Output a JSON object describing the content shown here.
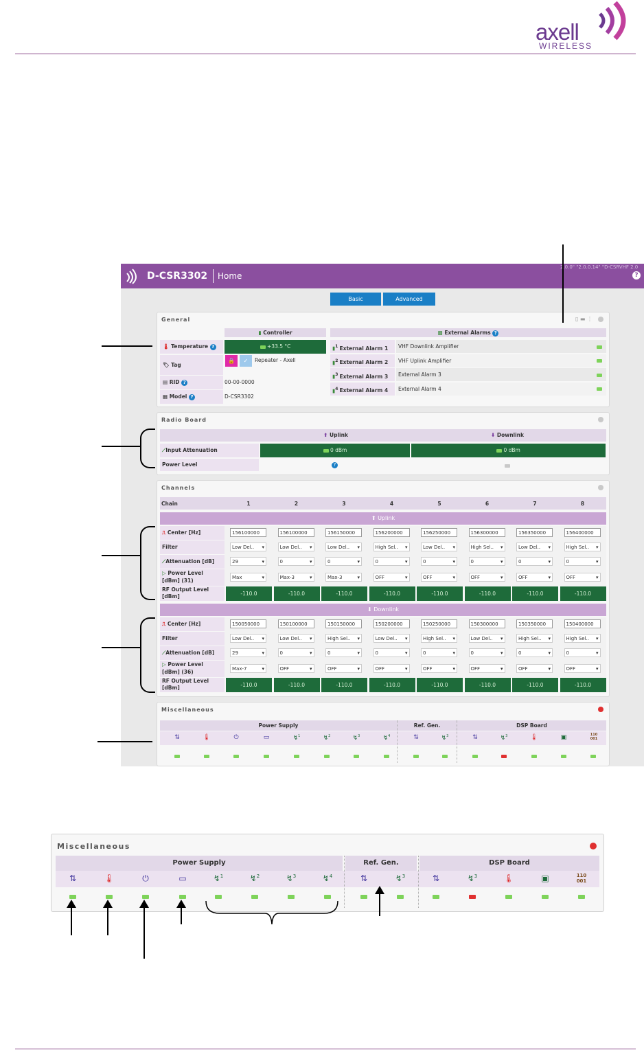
{
  "logo": {
    "brand": "axell",
    "sub": "WIRELESS"
  },
  "topbar": {
    "product": "D-CSR3302",
    "page": "Home",
    "version": "2.0.0\" \"2.0.0.14\" \"D-CSRVHF 2.0",
    "help": "?"
  },
  "tabs": [
    "Basic",
    "Advanced"
  ],
  "general": {
    "title": "General",
    "controller_header": "Controller",
    "alarms_header": "External Alarms",
    "temperature_label": "Temperature",
    "temperature_value": "+33.5 °C",
    "tag_label": "Tag",
    "tag_value": "Repeater - Axell",
    "rid_label": "RID",
    "rid_value": "00-00-0000",
    "model_label": "Model",
    "model_value": "D-CSR3302",
    "alarms": [
      {
        "num": "1",
        "label": "External Alarm 1",
        "desc": "VHF Downlink Amplifier"
      },
      {
        "num": "2",
        "label": "External Alarm 2",
        "desc": "VHF Uplink Amplifier"
      },
      {
        "num": "3",
        "label": "External Alarm 3",
        "desc": "External Alarm 3"
      },
      {
        "num": "4",
        "label": "External Alarm 4",
        "desc": "External Alarm 4"
      }
    ]
  },
  "radio": {
    "title": "Radio Board",
    "uplink": "Uplink",
    "downlink": "Downlink",
    "input_att_label": "Input Attenuation",
    "uplink_att": "0 dBm",
    "downlink_att": "0 dBm",
    "power_level_label": "Power Level"
  },
  "channels": {
    "title": "Channels",
    "chain_label": "Chain",
    "chains": [
      "1",
      "2",
      "3",
      "4",
      "5",
      "6",
      "7",
      "8"
    ],
    "uplink_band": "Uplink",
    "downlink_band": "Downlink",
    "labels": {
      "center": "Center [Hz]",
      "filter": "Filter",
      "attenuation": "Attenuation [dB]",
      "power_l1": "Power Level",
      "rf_l1": "RF Output Level",
      "rf_l2": "[dBm]"
    },
    "uplink": {
      "power_l2": "[dBm] (31)",
      "center": [
        "156100000",
        "156100000",
        "156150000",
        "156200000",
        "156250000",
        "156300000",
        "156350000",
        "156400000"
      ],
      "filter": [
        "Low Del..",
        "Low Del..",
        "Low Del..",
        "High Sel..",
        "Low Del..",
        "High Sel..",
        "Low Del..",
        "High Sel.."
      ],
      "attenuation": [
        "29",
        "0",
        "0",
        "0",
        "0",
        "0",
        "0",
        "0"
      ],
      "power": [
        "Max",
        "Max-3",
        "Max-3",
        "OFF",
        "OFF",
        "OFF",
        "OFF",
        "OFF"
      ],
      "rf": [
        "-110.0",
        "-110.0",
        "-110.0",
        "-110.0",
        "-110.0",
        "-110.0",
        "-110.0",
        "-110.0"
      ]
    },
    "downlink": {
      "power_l2": "[dBm] (36)",
      "center": [
        "150050000",
        "150100000",
        "150150000",
        "150200000",
        "150250000",
        "150300000",
        "150350000",
        "150400000"
      ],
      "filter": [
        "Low Del..",
        "Low Del..",
        "High Sel..",
        "Low Del..",
        "High Sel..",
        "Low Del..",
        "High Sel..",
        "High Sel.."
      ],
      "attenuation": [
        "29",
        "0",
        "0",
        "0",
        "0",
        "0",
        "0",
        "0"
      ],
      "power": [
        "Max-7",
        "OFF",
        "OFF",
        "OFF",
        "OFF",
        "OFF",
        "OFF",
        "OFF"
      ],
      "rf": [
        "-110.0",
        "-110.0",
        "-110.0",
        "-110.0",
        "-110.0",
        "-110.0",
        "-110.0",
        "-110.0"
      ]
    }
  },
  "misc": {
    "title": "Miscellaneous",
    "groups": [
      "Power Supply",
      "Ref. Gen.",
      "DSP Board"
    ],
    "icons": [
      {
        "icon": "dc-icon",
        "sym": "⇅",
        "led": "green",
        "tag": ""
      },
      {
        "icon": "thermometer-icon",
        "sym": "🌡",
        "led": "green",
        "tag": ""
      },
      {
        "icon": "power-plug-icon",
        "sym": "⏻",
        "led": "green",
        "tag": ""
      },
      {
        "icon": "battery-icon",
        "sym": "▭",
        "led": "green",
        "tag": ""
      },
      {
        "icon": "voltage-icon",
        "sym": "↯",
        "led": "green",
        "tag": "1"
      },
      {
        "icon": "voltage-icon",
        "sym": "↯",
        "led": "green",
        "tag": "2"
      },
      {
        "icon": "voltage-icon",
        "sym": "↯",
        "led": "green",
        "tag": "3"
      },
      {
        "icon": "voltage-icon",
        "sym": "↯",
        "led": "green",
        "tag": "4"
      },
      {
        "icon": "dc-icon",
        "sym": "⇅",
        "led": "green",
        "tag": ""
      },
      {
        "icon": "voltage-icon",
        "sym": "↯",
        "led": "green",
        "tag": "3"
      },
      {
        "icon": "dc-icon",
        "sym": "⇅",
        "led": "green",
        "tag": ""
      },
      {
        "icon": "voltage-icon",
        "sym": "↯",
        "led": "red",
        "tag": "3"
      },
      {
        "icon": "thermometer-icon",
        "sym": "🌡",
        "led": "green",
        "tag": ""
      },
      {
        "icon": "chip-icon",
        "sym": "▣",
        "led": "green",
        "tag": ""
      },
      {
        "icon": "binary-icon",
        "sym": "110 001",
        "led": "green",
        "tag": ""
      }
    ]
  },
  "colors": {
    "brand": "#8b4f9f",
    "green_cell": "#1e6b3a",
    "led_green": "#7ed35a",
    "led_red": "#e03030",
    "button": "#1a7fc6"
  }
}
